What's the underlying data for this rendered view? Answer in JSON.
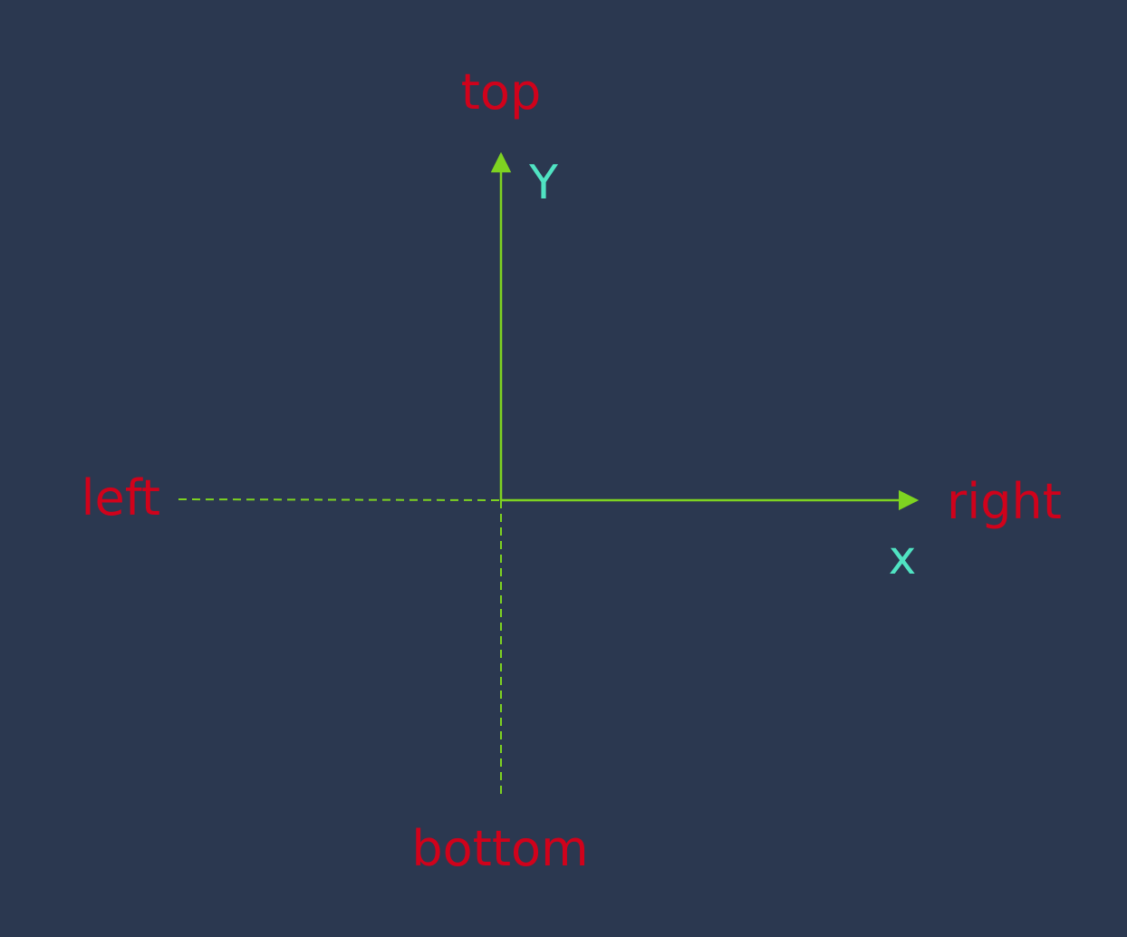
{
  "labels": {
    "top": "top",
    "bottom": "bottom",
    "left": "left",
    "right": "right",
    "y_axis": "Y",
    "x_axis": "x"
  },
  "colors": {
    "background": "#2b3850",
    "axis_line": "#7ed321",
    "direction_label": "#d0021b",
    "axis_label": "#50e3c2"
  }
}
